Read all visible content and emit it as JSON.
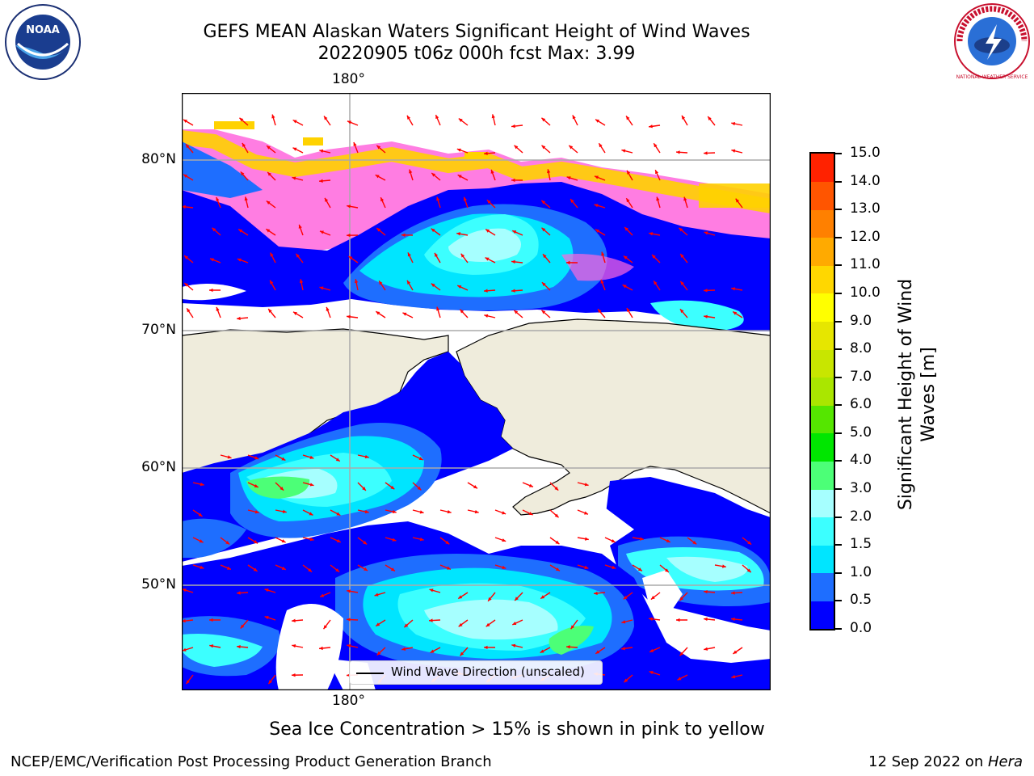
{
  "header": {
    "title_line1": "GEFS MEAN Alaskan Waters Significant Height of Wind Waves",
    "title_line2": "20220905 t06z 000h fcst   Max: 3.99"
  },
  "logos": {
    "noaa_text": "NOAA",
    "nws_text": "NATIONAL WEATHER SERVICE"
  },
  "map": {
    "lon_label_top": "180°",
    "lon_label_bottom": "180°",
    "lat_labels": [
      "80°N",
      "70°N",
      "60°N",
      "50°N"
    ],
    "colors": {
      "land": "#efecdc",
      "ocean_no_data": "#ffffff",
      "arrow": "#ff0000",
      "grid": "#aaaaaa"
    }
  },
  "legend": {
    "label": "Wind Wave Direction (unscaled)"
  },
  "colorbar": {
    "label": "Significant Height of Wind Waves [m]",
    "ticks": [
      "0.0",
      "0.5",
      "1.0",
      "1.5",
      "2.0",
      "3.0",
      "4.0",
      "5.0",
      "6.0",
      "7.0",
      "8.0",
      "9.0",
      "10.0",
      "11.0",
      "12.0",
      "13.0",
      "14.0",
      "15.0"
    ],
    "colors": [
      "#0000ff",
      "#1e6eff",
      "#00e5ff",
      "#3cffff",
      "#a6ffff",
      "#4cff77",
      "#00e600",
      "#55e600",
      "#aae600",
      "#c8e600",
      "#e6e600",
      "#ffff00",
      "#ffd700",
      "#ffaa00",
      "#ff8000",
      "#ff5500",
      "#ff2200"
    ]
  },
  "footer": {
    "sea_ice_note": "Sea Ice Concentration > 15% is shown in pink to yellow",
    "credit": "NCEP/EMC/Verification Post Processing Product Generation Branch",
    "date": "12 Sep 2022 on ",
    "machine": "Hera"
  }
}
